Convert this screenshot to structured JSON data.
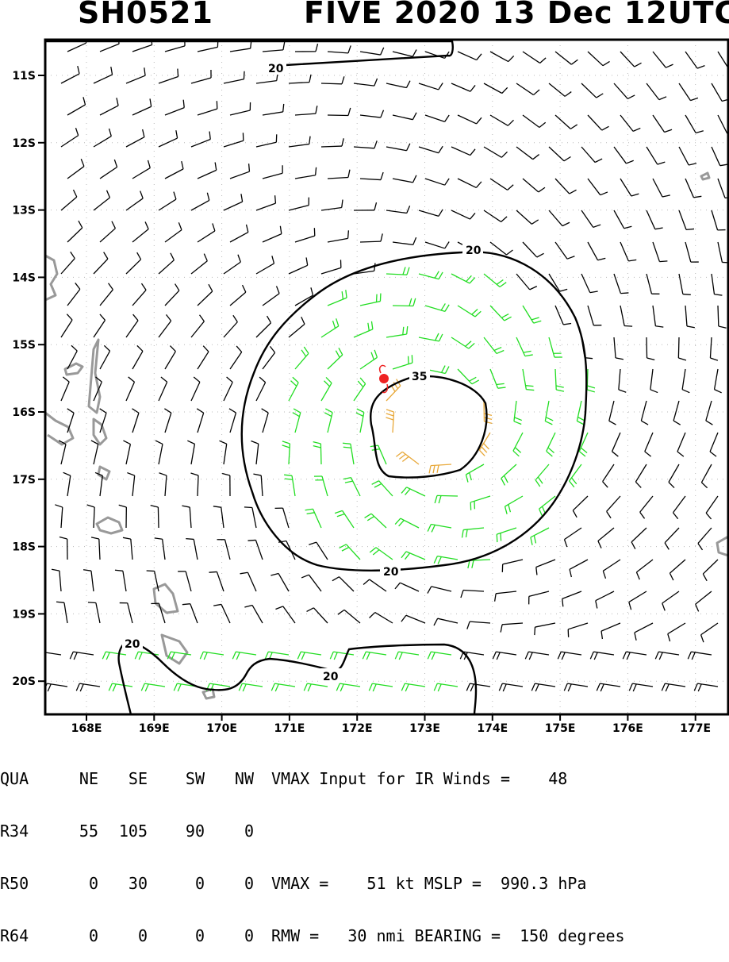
{
  "header": {
    "storm_id": "SH0521",
    "title": "FIVE 2020 13 Dec 12UTC"
  },
  "map": {
    "lat_labels": [
      "11S",
      "12S",
      "13S",
      "14S",
      "15S",
      "16S",
      "17S",
      "18S",
      "19S",
      "20S"
    ],
    "lon_labels": [
      "168E",
      "169E",
      "170E",
      "171E",
      "172E",
      "173E",
      "174E",
      "175E",
      "176E",
      "177E"
    ],
    "contour_labels": {
      "outer_north": "20",
      "outer_south": "20",
      "inner": "35",
      "top_edge": "20",
      "bottom_left": "20",
      "bottom_mid": "20"
    },
    "colors": {
      "barb_low": "#000000",
      "barb_34kt": "#22dd22",
      "barb_50kt": "#e8a838",
      "coast": "#999999",
      "center": "#ee2222"
    }
  },
  "table": {
    "header_row": [
      "QUA",
      "NE",
      "SE",
      "SW",
      "NW"
    ],
    "rows": [
      {
        "label": "R34",
        "values": [
          "55",
          "105",
          "90",
          "0"
        ]
      },
      {
        "label": "R50",
        "values": [
          "0",
          "30",
          "0",
          "0"
        ]
      },
      {
        "label": "R64",
        "values": [
          "0",
          "0",
          "0",
          "0"
        ]
      }
    ]
  },
  "info": {
    "vmax_input_label": "VMAX Input for IR Winds =",
    "vmax_input_value": "48",
    "vmax_label": "VMAX =",
    "vmax_value": "51",
    "vmax_unit": "kt",
    "mslp_label": "MSLP =",
    "mslp_value": "990.3",
    "mslp_unit": "hPa",
    "rmw_label": "RMW =",
    "rmw_value": "30",
    "rmw_unit": "nmi",
    "bearing_label": "BEARING =",
    "bearing_value": "150",
    "bearing_unit": "degrees"
  }
}
